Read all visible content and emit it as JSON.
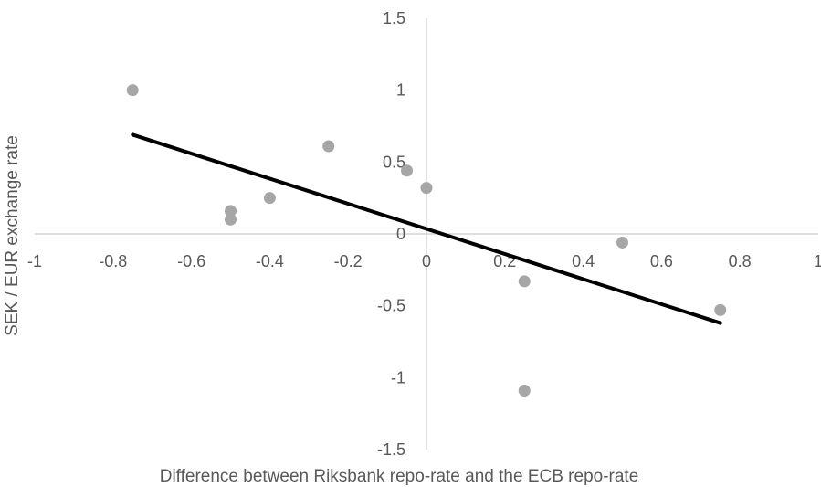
{
  "chart_data": {
    "type": "scatter",
    "title": "",
    "xlabel": "Difference between  Riksbank repo-rate and the ECB repo-rate",
    "ylabel": "SEK / EUR exchange rate",
    "xlim": [
      -1,
      1
    ],
    "ylim": [
      -1.5,
      1.5
    ],
    "xticks": [
      -1,
      -0.8,
      -0.6,
      -0.4,
      -0.2,
      0,
      0.2,
      0.4,
      0.6,
      0.8,
      1
    ],
    "yticks": [
      -1.5,
      -1,
      -0.5,
      0,
      0.5,
      1,
      1.5
    ],
    "xtick_labels": [
      "-1",
      "-0.8",
      "-0.6",
      "-0.4",
      "-0.2",
      "0",
      "0.2",
      "0.4",
      "0.6",
      "0.8",
      "1"
    ],
    "ytick_labels": [
      "-1.5",
      "-1",
      "-0.5",
      "0",
      "0.5",
      "1",
      "1.5"
    ],
    "grid": false,
    "series": [
      {
        "points": [
          {
            "x": -0.75,
            "y": 1.0
          },
          {
            "x": -0.5,
            "y": 0.16
          },
          {
            "x": -0.5,
            "y": 0.1
          },
          {
            "x": -0.4,
            "y": 0.25
          },
          {
            "x": -0.25,
            "y": 0.61
          },
          {
            "x": -0.05,
            "y": 0.44
          },
          {
            "x": 0.0,
            "y": 0.32
          },
          {
            "x": 0.25,
            "y": -0.33
          },
          {
            "x": 0.25,
            "y": -1.09
          },
          {
            "x": 0.5,
            "y": -0.06
          },
          {
            "x": 0.75,
            "y": -0.53
          }
        ],
        "color": "#a6a6a6"
      }
    ],
    "trendline": {
      "type": "linear",
      "from": {
        "x": -0.75,
        "y": 0.69
      },
      "to": {
        "x": 0.75,
        "y": -0.62
      },
      "color": "#000000"
    },
    "axis_color": "#bfbfbf"
  }
}
